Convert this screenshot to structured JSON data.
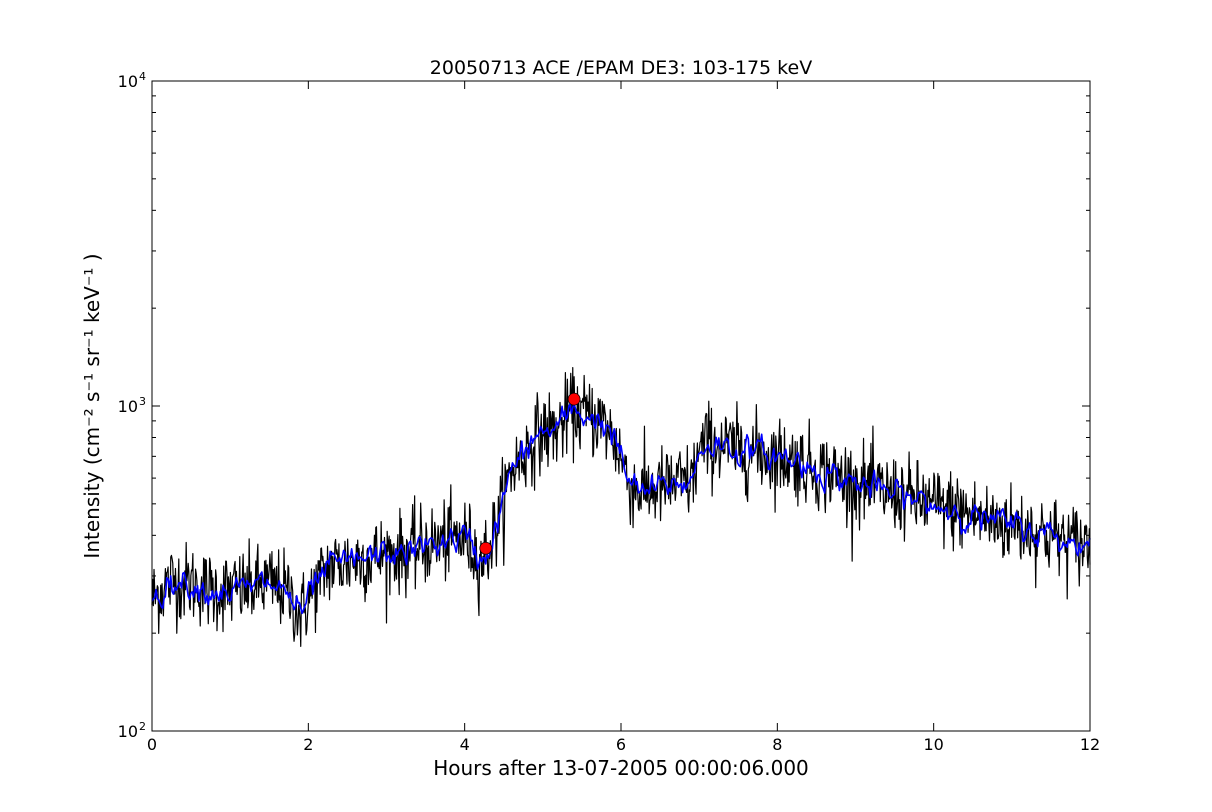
{
  "chart_data": {
    "type": "line",
    "title": "20050713 ACE /EPAM DE3: 103-175 keV",
    "xlabel": "Hours after 13-07-2005 00:00:06.000",
    "ylabel": "Intensity (cm⁻² s⁻¹ sr⁻¹ keV⁻¹ )",
    "xlim": [
      0,
      12
    ],
    "ylim": [
      100,
      10000
    ],
    "yscale": "log",
    "grid": false,
    "x_ticks": [
      "0",
      "2",
      "4",
      "6",
      "8",
      "10",
      "12"
    ],
    "y_ticks": [
      {
        "base": "10",
        "exp": "2"
      },
      {
        "base": "10",
        "exp": "3"
      },
      {
        "base": "10",
        "exp": "4"
      }
    ],
    "series": [
      {
        "color": "#000000",
        "style": "raw",
        "points": [
          [
            0.0,
            255
          ],
          [
            0.25,
            290
          ],
          [
            0.5,
            285
          ],
          [
            0.75,
            270
          ],
          [
            1.0,
            270
          ],
          [
            1.25,
            275
          ],
          [
            1.5,
            285
          ],
          [
            1.75,
            265
          ],
          [
            1.9,
            225
          ],
          [
            2.0,
            255
          ],
          [
            2.25,
            320
          ],
          [
            2.5,
            330
          ],
          [
            2.75,
            340
          ],
          [
            3.0,
            350
          ],
          [
            3.25,
            355
          ],
          [
            3.5,
            370
          ],
          [
            3.75,
            385
          ],
          [
            4.0,
            395
          ],
          [
            4.2,
            335
          ],
          [
            4.3,
            360
          ],
          [
            4.4,
            420
          ],
          [
            4.5,
            520
          ],
          [
            4.6,
            640
          ],
          [
            4.75,
            700
          ],
          [
            4.9,
            800
          ],
          [
            5.0,
            830
          ],
          [
            5.2,
            850
          ],
          [
            5.35,
            960
          ],
          [
            5.5,
            950
          ],
          [
            5.75,
            900
          ],
          [
            5.9,
            800
          ],
          [
            6.0,
            700
          ],
          [
            6.1,
            580
          ],
          [
            6.25,
            545
          ],
          [
            6.5,
            560
          ],
          [
            6.75,
            580
          ],
          [
            6.9,
            580
          ],
          [
            7.0,
            720
          ],
          [
            7.1,
            770
          ],
          [
            7.25,
            760
          ],
          [
            7.5,
            730
          ],
          [
            7.75,
            720
          ],
          [
            8.0,
            700
          ],
          [
            8.25,
            675
          ],
          [
            8.5,
            640
          ],
          [
            8.75,
            610
          ],
          [
            9.0,
            580
          ],
          [
            9.25,
            555
          ],
          [
            9.5,
            535
          ],
          [
            9.75,
            515
          ],
          [
            10.0,
            495
          ],
          [
            10.25,
            480
          ],
          [
            10.5,
            460
          ],
          [
            10.75,
            440
          ],
          [
            11.0,
            430
          ],
          [
            11.25,
            415
          ],
          [
            11.5,
            400
          ],
          [
            11.75,
            380
          ],
          [
            12.0,
            375
          ]
        ]
      },
      {
        "color": "#0000ff",
        "style": "smoothed",
        "points": [
          [
            0.0,
            255
          ],
          [
            0.25,
            290
          ],
          [
            0.5,
            285
          ],
          [
            0.75,
            270
          ],
          [
            1.0,
            270
          ],
          [
            1.25,
            275
          ],
          [
            1.5,
            285
          ],
          [
            1.75,
            265
          ],
          [
            1.9,
            225
          ],
          [
            2.0,
            255
          ],
          [
            2.25,
            320
          ],
          [
            2.5,
            330
          ],
          [
            2.75,
            340
          ],
          [
            3.0,
            350
          ],
          [
            3.25,
            355
          ],
          [
            3.5,
            370
          ],
          [
            3.75,
            385
          ],
          [
            4.0,
            395
          ],
          [
            4.2,
            335
          ],
          [
            4.3,
            360
          ],
          [
            4.4,
            420
          ],
          [
            4.5,
            520
          ],
          [
            4.6,
            640
          ],
          [
            4.75,
            700
          ],
          [
            4.9,
            800
          ],
          [
            5.0,
            830
          ],
          [
            5.2,
            850
          ],
          [
            5.35,
            960
          ],
          [
            5.5,
            950
          ],
          [
            5.75,
            900
          ],
          [
            5.9,
            800
          ],
          [
            6.0,
            700
          ],
          [
            6.1,
            580
          ],
          [
            6.25,
            545
          ],
          [
            6.5,
            560
          ],
          [
            6.75,
            580
          ],
          [
            6.9,
            580
          ],
          [
            7.0,
            720
          ],
          [
            7.1,
            770
          ],
          [
            7.25,
            760
          ],
          [
            7.5,
            730
          ],
          [
            7.75,
            720
          ],
          [
            8.0,
            700
          ],
          [
            8.25,
            675
          ],
          [
            8.5,
            640
          ],
          [
            8.75,
            610
          ],
          [
            9.0,
            580
          ],
          [
            9.25,
            555
          ],
          [
            9.5,
            535
          ],
          [
            9.75,
            515
          ],
          [
            10.0,
            495
          ],
          [
            10.25,
            480
          ],
          [
            10.5,
            460
          ],
          [
            10.75,
            440
          ],
          [
            11.0,
            430
          ],
          [
            11.25,
            415
          ],
          [
            11.5,
            400
          ],
          [
            11.75,
            380
          ],
          [
            12.0,
            375
          ]
        ]
      }
    ],
    "markers": [
      {
        "x": 4.27,
        "y": 365,
        "color": "#ff0000"
      },
      {
        "x": 5.4,
        "y": 1050,
        "color": "#ff0000"
      }
    ]
  }
}
